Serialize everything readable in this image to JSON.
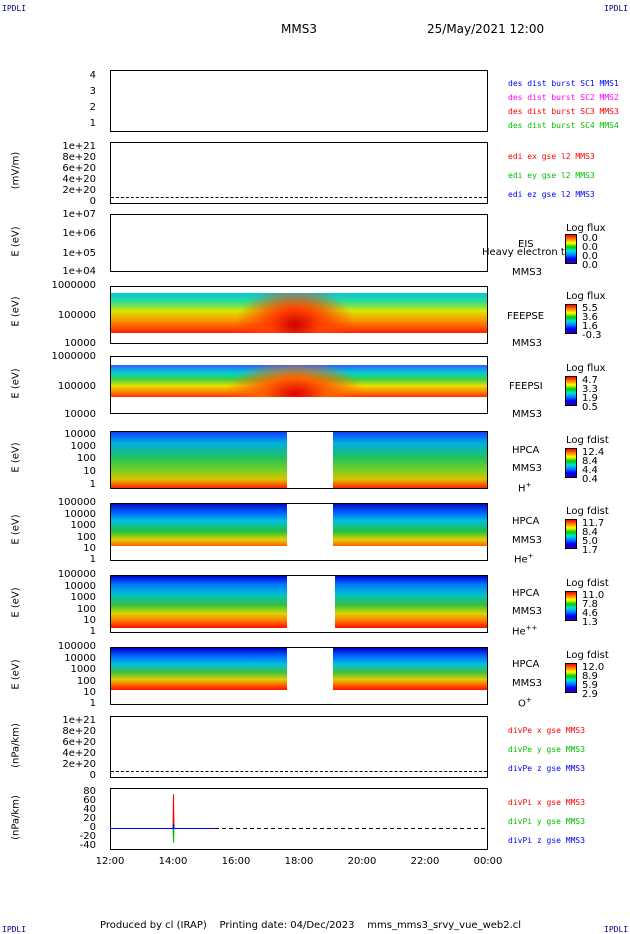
{
  "header": {
    "corner_tl": "IPDLI",
    "corner_tr": "IPDLI",
    "corner_bl": "IPDLI",
    "corner_br": "IPDLI",
    "spacecraft": "MMS3",
    "datetime": "25/May/2021 12:00"
  },
  "footer": {
    "produced": "Produced by cl (IRAP)",
    "printing": "Printing date: 04/Dec/2023",
    "script": "mms_mms3_srvy_vue_web2.cl"
  },
  "colors": {
    "red": "#ff0000",
    "green": "#00c000",
    "blue": "#0000ff",
    "magenta": "#ff00ff",
    "darkblue": "#00008b"
  },
  "x_axis": {
    "ticks": [
      "12:00",
      "14:00",
      "16:00",
      "18:00",
      "20:00",
      "22:00",
      "00:00"
    ]
  },
  "panels": {
    "p1": {
      "ticks": [
        "4",
        "3",
        "2",
        "1"
      ],
      "legend": [
        "des dist burst SC1 MMS1",
        "des dist burst SC2 MMS2",
        "des dist burst SC3 MMS3",
        "des dist burst SC4 MMS4"
      ]
    },
    "p2": {
      "ylabel": "(mV/m)",
      "ticks": [
        "1e+21",
        "8e+20",
        "6e+20",
        "4e+20",
        "2e+20",
        "0"
      ],
      "legend": [
        "edi ex gse l2 MMS3",
        "edi ey gse l2 MMS3",
        "edi ez gse l2 MMS3"
      ]
    },
    "p3": {
      "ylabel": "E (eV)",
      "ticks": [
        "1e+07",
        "1e+06",
        "1e+05",
        "1e+04"
      ],
      "inst": "EIS",
      "overlay": "Heavy electron to",
      "sc": "MMS3",
      "cb_title": "Log flux",
      "cb_vals": [
        "0.0",
        "0.0",
        "0.0",
        "0.0"
      ]
    },
    "p4": {
      "ylabel": "E (eV)",
      "ticks": [
        "1000000",
        "100000",
        "10000"
      ],
      "inst": "FEEPSE",
      "sc": "MMS3",
      "cb_title": "Log flux",
      "cb_vals": [
        "5.5",
        "3.6",
        "1.6",
        "-0.3"
      ]
    },
    "p5": {
      "ylabel": "E (eV)",
      "ticks": [
        "1000000",
        "100000",
        "10000"
      ],
      "inst": "FEEPSI",
      "sc": "MMS3",
      "cb_title": "Log flux",
      "cb_vals": [
        "4.7",
        "3.3",
        "1.9",
        "0.5"
      ]
    },
    "p6": {
      "ylabel": "E (eV)",
      "ticks": [
        "10000",
        "1000",
        "100",
        "10",
        "1"
      ],
      "inst": "HPCA",
      "sc": "MMS3",
      "species": "H",
      "species_sup": "+",
      "cb_title": "Log fdist",
      "cb_vals": [
        "12.4",
        "8.4",
        "4.4",
        "0.4"
      ]
    },
    "p7": {
      "ylabel": "E (eV)",
      "ticks": [
        "100000",
        "10000",
        "1000",
        "100",
        "10",
        "1"
      ],
      "inst": "HPCA",
      "sc": "MMS3",
      "species": "He",
      "species_sup": "+",
      "cb_title": "Log fdist",
      "cb_vals": [
        "11.7",
        "8.4",
        "5.0",
        "1.7"
      ]
    },
    "p8": {
      "ylabel": "E (eV)",
      "ticks": [
        "100000",
        "10000",
        "1000",
        "100",
        "10",
        "1"
      ],
      "inst": "HPCA",
      "sc": "MMS3",
      "species": "He",
      "species_sup": "++",
      "cb_title": "Log fdist",
      "cb_vals": [
        "11.0",
        "7.8",
        "4.6",
        "1.3"
      ]
    },
    "p9": {
      "ylabel": "E (eV)",
      "ticks": [
        "100000",
        "10000",
        "1000",
        "100",
        "10",
        "1"
      ],
      "inst": "HPCA",
      "sc": "MMS3",
      "species": "O",
      "species_sup": "+",
      "cb_title": "Log fdist",
      "cb_vals": [
        "12.0",
        "8.9",
        "5.9",
        "2.9"
      ]
    },
    "p10": {
      "ylabel": "(nPa/km)",
      "ticks": [
        "1e+21",
        "8e+20",
        "6e+20",
        "4e+20",
        "2e+20",
        "0"
      ],
      "legend": [
        "divPe x gse MMS3",
        "divPe y gse MMS3",
        "divPe z gse MMS3"
      ]
    },
    "p11": {
      "ylabel": "(nPa/km)",
      "ticks": [
        "80",
        "60",
        "40",
        "20",
        "0",
        "-20",
        "-40"
      ],
      "legend": [
        "divPi x gse MMS3",
        "divPi y gse MMS3",
        "divPi z gse MMS3"
      ]
    }
  },
  "chart_data": {
    "type": "line",
    "title": "MMS3 25/May/2021 12:00",
    "xlabel": "",
    "x_range": [
      "12:00",
      "00:00"
    ],
    "data_gap": [
      "17:40",
      "19:00"
    ],
    "series": [
      {
        "name": "divPi x gse MMS3",
        "x": [
          "12:00",
          "14:00",
          "14:01",
          "14:02",
          "15:20"
        ],
        "y": [
          0,
          0,
          72,
          0,
          0
        ]
      },
      {
        "name": "divPi y gse MMS3",
        "x": [
          "12:00",
          "14:00",
          "14:01",
          "14:02",
          "15:20"
        ],
        "y": [
          0,
          0,
          -30,
          0,
          0
        ]
      },
      {
        "name": "divPi z gse MMS3",
        "x": [
          "12:00",
          "14:00",
          "14:01",
          "14:02",
          "15:20"
        ],
        "y": [
          0,
          0,
          10,
          0,
          0
        ]
      }
    ],
    "ylim": [
      -45,
      85
    ]
  }
}
